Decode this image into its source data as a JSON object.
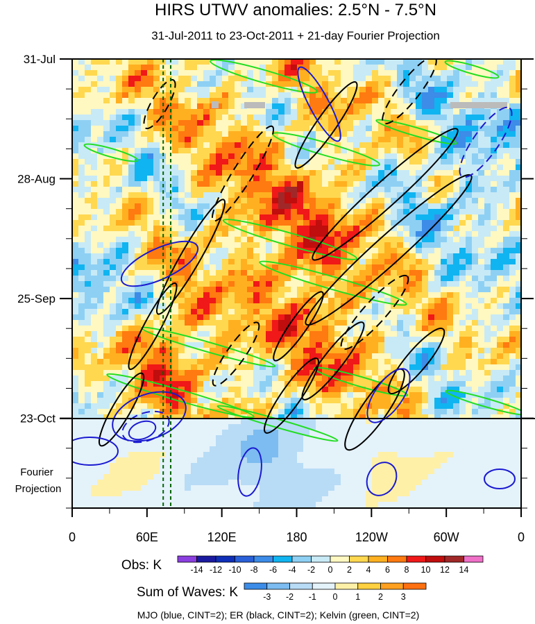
{
  "chart_data": {
    "type": "heatmap",
    "title": "HIRS UTWV anomalies: 2.5°N - 7.5°N",
    "subtitle": "31-Jul-2011 to 23-Oct-2011 + 21-day Fourier Projection",
    "x_axis": {
      "ticks": [
        {
          "lon": 0,
          "label": "0"
        },
        {
          "lon": 60,
          "label": "60E"
        },
        {
          "lon": 120,
          "label": "120E"
        },
        {
          "lon": 180,
          "label": "180"
        },
        {
          "lon": 240,
          "label": "120W"
        },
        {
          "lon": 300,
          "label": "60W"
        },
        {
          "lon": 360,
          "label": "0"
        }
      ],
      "range": [
        0,
        360
      ]
    },
    "y_axis": {
      "ticks": [
        {
          "day": 0,
          "label": "31-Jul"
        },
        {
          "day": 28,
          "label": "28-Aug"
        },
        {
          "day": 56,
          "label": "25-Sep"
        },
        {
          "day": 84,
          "label": "23-Oct"
        }
      ],
      "range": [
        0,
        105
      ],
      "projection_label": [
        "Fourier",
        "Projection"
      ]
    },
    "obs_colorbar": {
      "label": "Obs: K",
      "ticks": [
        "-14",
        "-12",
        "-10",
        "-8",
        "-6",
        "-4",
        "-2",
        "0",
        "2",
        "4",
        "6",
        "8",
        "10",
        "12",
        "14"
      ],
      "colors": [
        "#8c3fe0",
        "#1a1aa0",
        "#0f2fb8",
        "#2a60d8",
        "#3c8ce8",
        "#10b4f0",
        "#8ed0f4",
        "#c8eaf6",
        "#fff8c0",
        "#ffd850",
        "#ffb020",
        "#ff7a10",
        "#f01818",
        "#c00d0d",
        "#a02828",
        "#f070c8"
      ]
    },
    "waves_colorbar": {
      "label": "Sum of Waves: K",
      "ticks": [
        "-3",
        "-2",
        "-1",
        "0",
        "1",
        "2",
        "3"
      ],
      "colors": [
        "#3c8ce8",
        "#7cbcf0",
        "#b8dcf6",
        "#e4f2fa",
        "#fff0a8",
        "#ffd040",
        "#ffa020",
        "#ff7010"
      ]
    },
    "dashed_lines_lon": [
      73,
      79
    ],
    "footer": "MJO (blue, CINT=2); ER (black, CINT=2); Kelvin (green, CINT=2)",
    "colors": {
      "mjo": "#1a1ad0",
      "er": "#000000",
      "kelvin": "#22dd22",
      "dashed_meridian": "#006400"
    }
  }
}
